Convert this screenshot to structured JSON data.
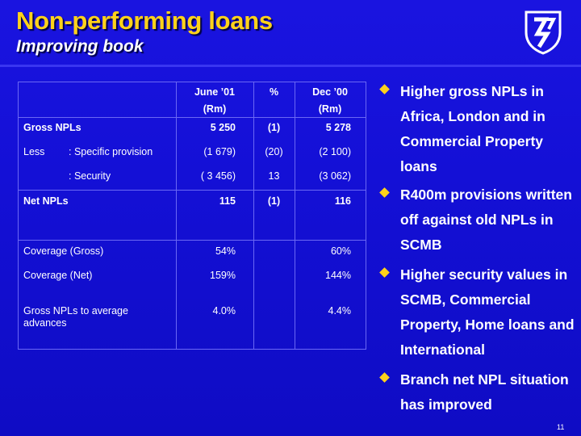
{
  "header": {
    "title": "Non-performing loans",
    "subtitle": "Improving book"
  },
  "table": {
    "columns": {
      "c1": {
        "line1": "June ’01",
        "line2": "(Rm)"
      },
      "c2": {
        "line1": "%"
      },
      "c3": {
        "line1": "Dec ’00",
        "line2": "(Rm)"
      }
    },
    "rows": {
      "gross": {
        "label": "Gross NPLs",
        "v1": "5 250",
        "v2": "(1)",
        "v3": "5 278"
      },
      "specific": {
        "label": "Less",
        "sub": ": Specific provision",
        "v1": "(1 679)",
        "v2": "(20)",
        "v3": "(2 100)"
      },
      "security": {
        "sub": ": Security",
        "v1": "( 3 456)",
        "v2": "13",
        "v3": "(3 062)"
      },
      "net": {
        "label": "Net NPLs",
        "v1": "115",
        "v2": "(1)",
        "v3": "116"
      },
      "cov_gross": {
        "label": "Coverage (Gross)",
        "v1": "54%",
        "v3": "60%"
      },
      "cov_net": {
        "label": "Coverage (Net)",
        "v1": "159%",
        "v3": "144%"
      },
      "ratio": {
        "label_line1": "Gross NPLs to average",
        "label_line2": "advances",
        "v1": "4.0%",
        "v3": "4.4%"
      }
    }
  },
  "bullets": [
    {
      "text": "Higher gross NPLs in Africa, London and in Commercial Property loans"
    },
    {
      "text": "R400m provisions written off against old NPLs in SCMB"
    },
    {
      "text": "Higher security values in SCMB, Commercial Property, Home loans and International"
    },
    {
      "text": "Branch net NPL situation has improved"
    }
  ],
  "footer": {
    "page_number": "11"
  },
  "colors": {
    "background": "#1410d6",
    "title": "#ffd21a",
    "bullet": "#ffd21a",
    "grid": "#6b68f4"
  },
  "icons": {
    "logo": "shield-logo-icon",
    "bullet": "diamond-bullet-icon"
  }
}
